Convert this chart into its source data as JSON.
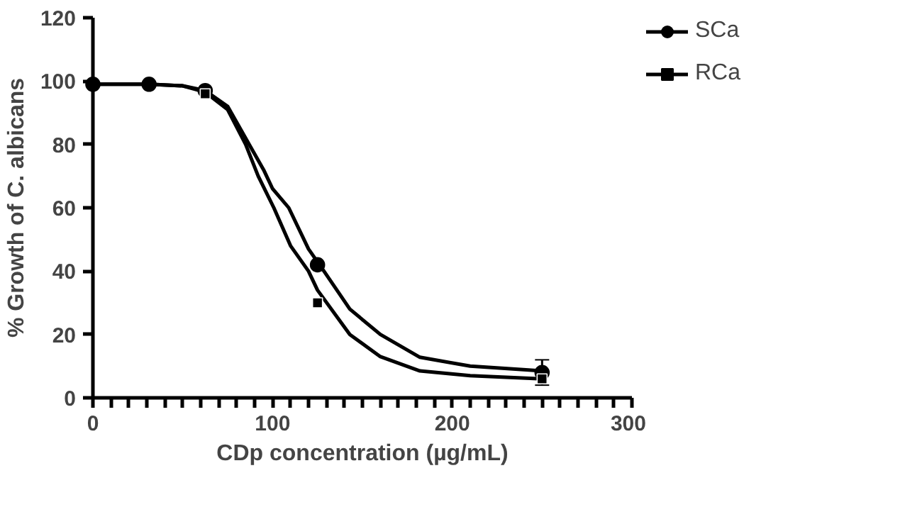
{
  "chart_data": {
    "type": "scatter",
    "xlabel": "CDp concentration (µg/mL)",
    "ylabel": "% Growth of C. albicans",
    "xlim": [
      0,
      300
    ],
    "ylim": [
      0,
      120
    ],
    "xticks": [
      0,
      {
        "value": 10,
        "label": null
      },
      {
        "value": 20,
        "label": null
      },
      {
        "value": 30,
        "label": null
      },
      {
        "value": 40,
        "label": null
      },
      {
        "value": 50,
        "label": null
      },
      {
        "value": 60,
        "label": null
      },
      {
        "value": 70,
        "label": null
      },
      {
        "value": 80,
        "label": null
      },
      {
        "value": 90,
        "label": null
      },
      100,
      {
        "value": 110,
        "label": null
      },
      {
        "value": 120,
        "label": null
      },
      {
        "value": 130,
        "label": null
      },
      {
        "value": 140,
        "label": null
      },
      {
        "value": 150,
        "label": null
      },
      {
        "value": 160,
        "label": null
      },
      {
        "value": 170,
        "label": null
      },
      {
        "value": 180,
        "label": null
      },
      {
        "value": 190,
        "label": null
      },
      200,
      {
        "value": 210,
        "label": null
      },
      {
        "value": 220,
        "label": null
      },
      {
        "value": 230,
        "label": null
      },
      {
        "value": 240,
        "label": null
      },
      {
        "value": 250,
        "label": null
      },
      {
        "value": 260,
        "label": null
      },
      {
        "value": 270,
        "label": null
      },
      {
        "value": 280,
        "label": null
      },
      {
        "value": 290,
        "label": null
      },
      300
    ],
    "yticks": [
      0,
      20,
      40,
      60,
      80,
      100,
      120
    ],
    "grid": false,
    "legend": "top right",
    "line_style": "solid",
    "series": [
      {
        "name": "SCa",
        "color": "#000000",
        "marker": "circle",
        "x": [
          0,
          31.25,
          62.5,
          125,
          250
        ],
        "values": [
          99,
          99,
          97,
          42,
          8
        ],
        "errors": [
          null,
          null,
          null,
          null,
          4
        ]
      },
      {
        "type": "line",
        "color": "#000000",
        "x": [
          0,
          31.25,
          50,
          62.5,
          75,
          87,
          95,
          100,
          109,
          120,
          128.6,
          143,
          160,
          182,
          210,
          250
        ],
        "values": [
          99,
          99,
          98.5,
          97,
          92,
          80,
          72,
          66,
          60,
          47,
          40,
          28,
          20,
          12.8,
          10,
          8.5
        ]
      },
      {
        "name": "RCa",
        "color": "#000000",
        "marker": "square",
        "x": [
          62.5,
          125,
          250
        ],
        "values": [
          96,
          30,
          6
        ]
      },
      {
        "type": "line",
        "color": "#000000",
        "x": [
          0,
          31.25,
          50,
          62.5,
          75,
          85,
          92,
          100.7,
          110,
          120,
          125,
          143,
          160,
          182,
          210,
          250
        ],
        "values": [
          99,
          99,
          98.5,
          96.5,
          91,
          80,
          70,
          60,
          48,
          40,
          34,
          20,
          13,
          8.5,
          7,
          6
        ]
      }
    ]
  }
}
